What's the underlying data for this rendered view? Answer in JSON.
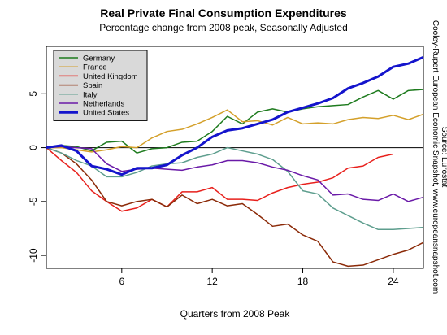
{
  "chart_data": {
    "type": "line",
    "title": "Real Private Final Consumption Expenditures",
    "subtitle": "Percentage change from 2008 peak, Seasonally Adjusted",
    "x_label": "Quarters from 2008 Peak",
    "annotations": [
      "Cooley-Rupert European Economic Snapshot, www.europeansnapshot.com",
      "Source: Eurostat"
    ],
    "x": [
      1,
      2,
      3,
      4,
      5,
      6,
      7,
      8,
      9,
      10,
      11,
      12,
      13,
      14,
      15,
      16,
      17,
      18,
      19,
      20,
      21,
      22,
      23,
      24,
      25,
      26
    ],
    "xlim": [
      1,
      26
    ],
    "xticks": [
      6,
      12,
      18,
      24
    ],
    "ylim": [
      -11.2,
      9.4
    ],
    "yticks": [
      -10,
      -5,
      0,
      5
    ],
    "hline": 0,
    "legend": "top-left",
    "grid": false,
    "series": [
      {
        "name": "Germany",
        "color": "#1e7b1e",
        "width": 1.5,
        "values": [
          0,
          0.2,
          0.1,
          -0.3,
          0.5,
          0.6,
          -0.5,
          -0.1,
          0.0,
          0.5,
          0.6,
          1.5,
          2.9,
          2.2,
          3.3,
          3.6,
          3.3,
          3.6,
          3.8,
          3.9,
          4.0,
          4.7,
          5.3,
          4.5,
          5.3,
          5.4
        ]
      },
      {
        "name": "France",
        "color": "#d4a02a",
        "width": 1.5,
        "values": [
          0,
          0.0,
          -0.2,
          -0.4,
          -0.2,
          0.1,
          0.0,
          0.9,
          1.5,
          1.7,
          2.2,
          2.8,
          3.5,
          2.4,
          2.5,
          2.1,
          2.8,
          2.2,
          2.3,
          2.2,
          2.6,
          2.8,
          2.7,
          3.0,
          2.6,
          3.1
        ]
      },
      {
        "name": "United Kingdom",
        "color": "#e8201c",
        "width": 1.5,
        "values": [
          0,
          -1.2,
          -2.3,
          -4.0,
          -5.0,
          -5.9,
          -5.6,
          -4.8,
          -5.5,
          -4.1,
          -4.1,
          -3.7,
          -4.8,
          -4.8,
          -4.9,
          -4.2,
          -3.7,
          -3.4,
          -3.2,
          -2.8,
          -1.9,
          -1.7,
          -0.9,
          -0.6,
          null,
          null
        ]
      },
      {
        "name": "Spain",
        "color": "#8b2a08",
        "width": 1.5,
        "values": [
          0,
          -0.5,
          -1.5,
          -3.0,
          -5.0,
          -5.4,
          -5.0,
          -4.8,
          -5.5,
          -4.4,
          -5.2,
          -4.8,
          -5.4,
          -5.2,
          -6.2,
          -7.3,
          -7.1,
          -8.1,
          -8.7,
          -10.6,
          -11.0,
          -10.9,
          -10.4,
          -9.9,
          -9.5,
          -8.8
        ]
      },
      {
        "name": "Italy",
        "color": "#5e9e8e",
        "width": 1.5,
        "values": [
          0,
          -0.5,
          -1.2,
          -1.7,
          -2.7,
          -2.7,
          -2.3,
          -1.7,
          -1.5,
          -1.4,
          -0.9,
          -0.6,
          0.0,
          -0.3,
          -0.6,
          -1.1,
          -2.2,
          -4.0,
          -4.3,
          -5.6,
          -6.3,
          -7.0,
          -7.6,
          -7.6,
          -7.5,
          -7.4
        ]
      },
      {
        "name": "Netherlands",
        "color": "#6a1aa8",
        "width": 1.5,
        "values": [
          0,
          0.1,
          0.0,
          -0.1,
          -1.5,
          -2.2,
          -2.0,
          -1.9,
          -2.0,
          -2.1,
          -1.8,
          -1.6,
          -1.2,
          -1.2,
          -1.4,
          -1.8,
          -2.1,
          -2.6,
          -3.0,
          -4.4,
          -4.3,
          -4.8,
          -4.9,
          -4.3,
          -5.0,
          -4.6
        ]
      },
      {
        "name": "United States",
        "color": "#1414cc",
        "width": 3,
        "values": [
          0,
          0.2,
          -0.3,
          -1.7,
          -2.0,
          -2.5,
          -1.9,
          -1.9,
          -1.6,
          -0.7,
          0,
          1.0,
          1.6,
          1.8,
          2.2,
          2.6,
          3.3,
          3.7,
          4.1,
          4.6,
          5.5,
          6.0,
          6.6,
          7.5,
          7.8,
          8.4
        ]
      }
    ]
  }
}
